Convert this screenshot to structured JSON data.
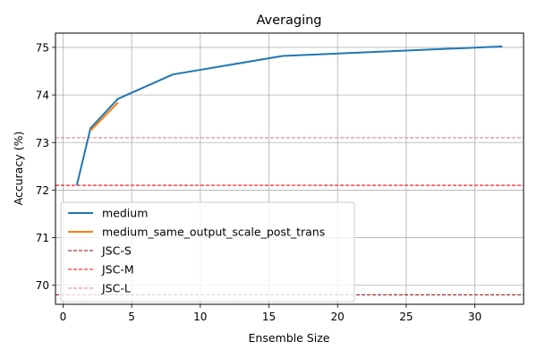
{
  "chart_data": {
    "type": "line",
    "title": "Averaging",
    "xlabel": "Ensemble Size",
    "ylabel": "Accuracy (%)",
    "xlim": [
      -0.55,
      33.55
    ],
    "ylim": [
      69.6,
      75.3
    ],
    "xticks": [
      0,
      5,
      10,
      15,
      20,
      25,
      30
    ],
    "yticks": [
      70,
      71,
      72,
      73,
      74,
      75
    ],
    "xtick_labels": [
      "0",
      "5",
      "10",
      "15",
      "20",
      "25",
      "30"
    ],
    "ytick_labels": [
      "70",
      "71",
      "72",
      "73",
      "74",
      "75"
    ],
    "grid": true,
    "legend_position": "lower-left",
    "series": [
      {
        "name": "medium",
        "color": "#1f77b4",
        "style": "solid",
        "x": [
          1,
          2,
          4,
          8,
          16,
          32
        ],
        "y": [
          72.1,
          73.3,
          73.92,
          74.43,
          74.82,
          75.02
        ]
      },
      {
        "name": "medium_same_output_scale_post_trans",
        "color": "#ff7f0e",
        "style": "solid",
        "x": [
          2,
          4
        ],
        "y": [
          73.25,
          73.84
        ]
      }
    ],
    "hlines": [
      {
        "name": "JSC-S",
        "y": 69.8,
        "color": "#8b0000",
        "style": "dashed"
      },
      {
        "name": "JSC-M",
        "y": 72.1,
        "color": "#ff0000",
        "style": "dashed"
      },
      {
        "name": "JSC-L",
        "y": 73.1,
        "color": "#f08080",
        "style": "dashed"
      }
    ]
  }
}
